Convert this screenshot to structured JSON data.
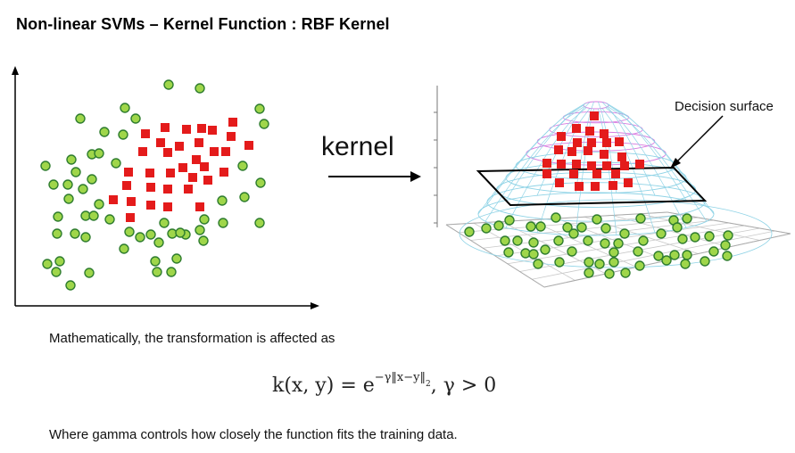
{
  "title": "Non-linear SVMs – Kernel Function : RBF Kernel",
  "kernel_label": "kernel",
  "decision_surface_label": "Decision surface",
  "math_intro": "Mathematically, the transformation is affected as",
  "formula": {
    "lhs": "k(x, y) = e",
    "exponent": "−γ‖x−y‖",
    "exponent_power": "2",
    "condition": ", γ > 0"
  },
  "footnote": "Where gamma controls how closely the function fits the training data.",
  "colors": {
    "positive_fill": "#e41b1b",
    "negative_fill": "#9fd64a",
    "negative_stroke": "#2f7d2f",
    "mesh_blue": "#8fd3e6",
    "mesh_pink": "#d77be0"
  }
}
